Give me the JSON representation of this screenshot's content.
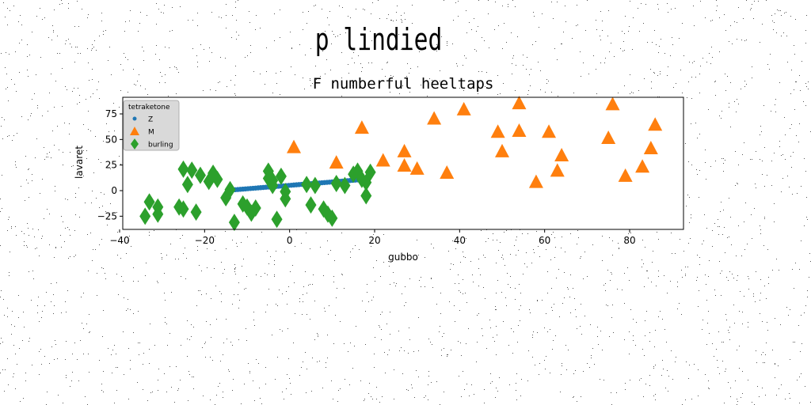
{
  "figure": {
    "suptitle": "p lindied"
  },
  "chart_data": {
    "type": "scatter",
    "title": "F numberful heeltaps",
    "xlabel": "gubbo",
    "ylabel": "lavaret",
    "xlim": [
      -41,
      92
    ],
    "ylim": [
      -38,
      92
    ],
    "xticks": [
      -40,
      -20,
      0,
      20,
      40,
      60,
      80
    ],
    "yticks": [
      -25,
      0,
      25,
      50,
      75
    ],
    "grid": false,
    "legend": {
      "title": "tetraketone",
      "placement": "top-left"
    },
    "series": [
      {
        "name": "Z",
        "marker": "circle",
        "color": "#1f77b4",
        "x": [
          -14,
          -13.4,
          -12.8,
          -12.2,
          -11.6,
          -11,
          -10.4,
          -9.8,
          -9.2,
          -8.6,
          -8,
          -7.4,
          -6.8,
          -6.2,
          -5.6,
          -5,
          -4.4,
          -3.8,
          -3.2,
          -2.6,
          -2,
          -1.4,
          -0.8,
          -0.2,
          0.4,
          1,
          1.6,
          2.2,
          2.8,
          3.4,
          4,
          4.6,
          5.2,
          5.8,
          6.4,
          7,
          7.6,
          8.2,
          8.8,
          9.4,
          10,
          10.6,
          11.2,
          11.8,
          12.4,
          13,
          13.6,
          14.2,
          14.8,
          15.4,
          16,
          16.6,
          17.2,
          17.8,
          18.4
        ],
        "y": [
          0.5,
          0.7,
          0.9,
          1.1,
          1.3,
          1.5,
          1.7,
          1.9,
          2.1,
          2.3,
          2.5,
          2.7,
          2.9,
          3.1,
          3.3,
          3.5,
          3.7,
          3.9,
          4.1,
          4.3,
          4.5,
          4.7,
          4.9,
          5.1,
          5.3,
          5.5,
          5.7,
          5.9,
          6.1,
          6.3,
          6.5,
          6.7,
          6.9,
          7.1,
          7.3,
          7.5,
          7.7,
          7.9,
          8.1,
          8.3,
          8.5,
          8.7,
          8.9,
          9.1,
          9.3,
          9.5,
          9.7,
          9.9,
          10.1,
          10.3,
          10.5,
          10.7,
          10.9,
          11.1,
          11.3
        ]
      },
      {
        "name": "M",
        "marker": "triangle",
        "color": "#ff7f0e",
        "x": [
          1,
          11,
          17,
          22,
          27,
          27,
          30,
          34,
          37,
          41,
          49,
          50,
          54,
          54,
          58,
          61,
          63,
          64,
          75,
          76,
          79,
          83,
          85,
          86
        ],
        "y": [
          42,
          27,
          61,
          29,
          38,
          24,
          21,
          70,
          17,
          79,
          57,
          38,
          85,
          58,
          8,
          57,
          19,
          34,
          51,
          84,
          14,
          23,
          41,
          64
        ]
      },
      {
        "name": "burling",
        "marker": "diamond",
        "color": "#2ca02c",
        "x": [
          -34,
          -33,
          -31,
          -31,
          -26,
          -25,
          -25,
          -24,
          -23,
          -22,
          -21,
          -19,
          -18,
          -17,
          -15,
          -14,
          -13,
          -11,
          -10,
          -9,
          -8,
          -5,
          -5,
          -4,
          -4,
          -3,
          -2,
          -1,
          -1,
          4,
          5,
          6,
          8,
          9,
          10,
          11,
          13,
          15,
          16,
          17,
          18,
          18,
          19
        ],
        "y": [
          -25,
          -11,
          -16,
          -23,
          -16,
          -18,
          21,
          6,
          20,
          -21,
          15,
          9,
          17,
          11,
          -7,
          1,
          -31,
          -13,
          -16,
          -22,
          -17,
          19,
          12,
          5,
          10,
          -28,
          14,
          -8,
          -1,
          6,
          -14,
          5,
          -18,
          -23,
          -27,
          7,
          5,
          16,
          19,
          11,
          -5,
          8,
          18
        ]
      }
    ]
  },
  "colors": {
    "Z": "#1f77b4",
    "M": "#ff7f0e",
    "burling": "#2ca02c"
  }
}
